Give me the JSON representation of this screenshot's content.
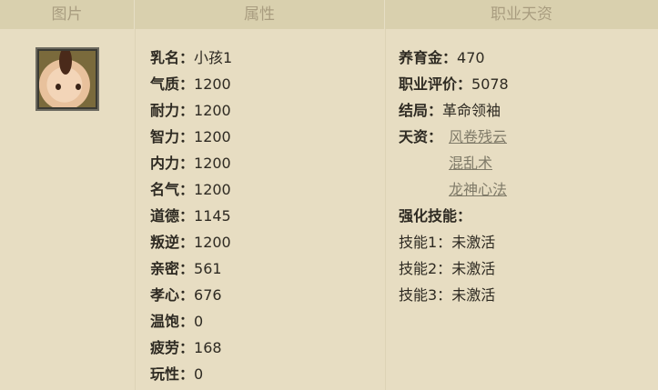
{
  "headers": {
    "image": "图片",
    "attributes": "属性",
    "talent": "职业天资"
  },
  "attributes": [
    {
      "label": "乳名：",
      "value": "小孩1"
    },
    {
      "label": "气质：",
      "value": "1200"
    },
    {
      "label": "耐力：",
      "value": "1200"
    },
    {
      "label": "智力：",
      "value": "1200"
    },
    {
      "label": "内力：",
      "value": "1200"
    },
    {
      "label": "名气：",
      "value": "1200"
    },
    {
      "label": "道德：",
      "value": "1145"
    },
    {
      "label": "叛逆：",
      "value": "1200"
    },
    {
      "label": "亲密：",
      "value": "561"
    },
    {
      "label": "孝心：",
      "value": "676"
    },
    {
      "label": "温饱：",
      "value": "0"
    },
    {
      "label": "疲劳：",
      "value": "168"
    },
    {
      "label": "玩性：",
      "value": "0"
    }
  ],
  "career": {
    "fund_label": "养育金：",
    "fund": "470",
    "rating_label": "职业评价：",
    "rating": "5078",
    "ending_label": "结局：",
    "ending": "革命领袖",
    "talent_label": "天资：",
    "talents": [
      "风卷残云",
      "混乱术",
      "龙神心法"
    ],
    "enhance_label": "强化技能：",
    "skills": [
      {
        "label": "技能1：",
        "value": "未激活"
      },
      {
        "label": "技能2：",
        "value": "未激活"
      },
      {
        "label": "技能3：",
        "value": "未激活"
      }
    ]
  }
}
